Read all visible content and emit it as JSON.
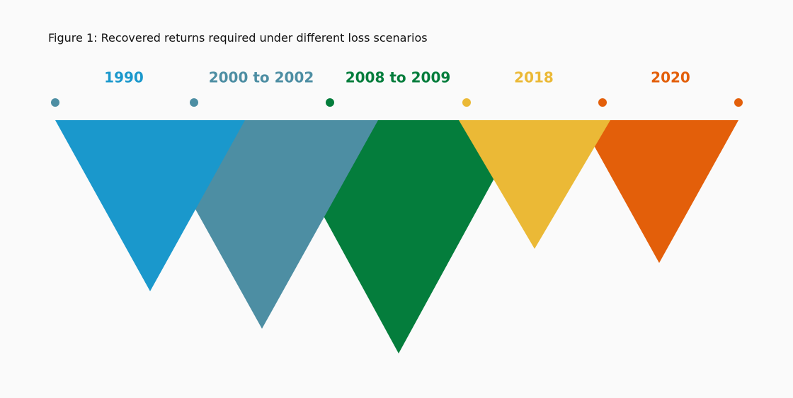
{
  "title": "Figure 1: Recovered returns required under different loss scenarios",
  "periods": [
    {
      "label": "1990",
      "color": "#1a98cc"
    },
    {
      "label": "2000 to 2002",
      "color": "#4d8ea3"
    },
    {
      "label": "2008 to 2009",
      "color": "#047d3c"
    },
    {
      "label": "2018",
      "color": "#ebb936"
    },
    {
      "label": "2020",
      "color": "#e35f0a"
    }
  ]
}
